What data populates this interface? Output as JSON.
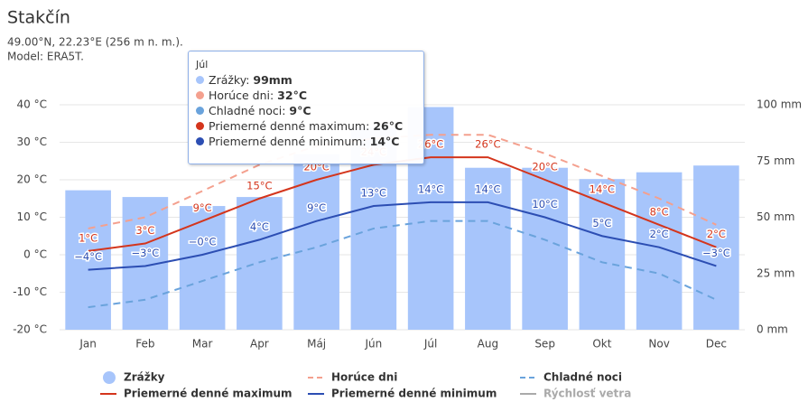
{
  "chart_data": {
    "type": "bar",
    "title": "Stakčín",
    "subtitle": [
      "49.00°N, 22.23°E (256 m n. m.).",
      "Model: ERA5T."
    ],
    "categories": [
      "Jan",
      "Feb",
      "Mar",
      "Apr",
      "Máj",
      "Jún",
      "Júl",
      "Aug",
      "Sep",
      "Okt",
      "Nov",
      "Dec"
    ],
    "ylim": [
      -20,
      40
    ],
    "yticks": [
      {
        "value": -20,
        "label": "-20 °C"
      },
      {
        "value": -10,
        "label": "-10 °C"
      },
      {
        "value": 0,
        "label": "0 °C"
      },
      {
        "value": 10,
        "label": "10 °C"
      },
      {
        "value": 20,
        "label": "20 °C"
      },
      {
        "value": 30,
        "label": "30 °C"
      },
      {
        "value": 40,
        "label": "40 °C"
      }
    ],
    "y2lim": [
      0,
      100
    ],
    "y2ticks": [
      {
        "value": 0,
        "label": "0 mm"
      },
      {
        "value": 25,
        "label": "25 mm"
      },
      {
        "value": 50,
        "label": "50 mm"
      },
      {
        "value": 75,
        "label": "75 mm"
      },
      {
        "value": 100,
        "label": "100 mm"
      }
    ],
    "grid": true,
    "series": [
      {
        "name": "Zrážky",
        "type": "bar",
        "axis": "y2",
        "color": "#a7c5fb",
        "values": [
          62,
          59,
          55,
          59,
          78,
          90,
          99,
          72,
          72,
          67,
          70,
          73
        ]
      },
      {
        "name": "Horúce dni",
        "type": "line",
        "dashed": true,
        "color": "#f4a08e",
        "values": [
          7,
          10,
          17,
          24,
          29,
          31,
          32,
          32,
          27,
          21,
          15,
          8
        ]
      },
      {
        "name": "Chladné noci",
        "type": "line",
        "dashed": true,
        "color": "#6aa3dc",
        "values": [
          -14,
          -12,
          -7,
          -2,
          2,
          7,
          9,
          9,
          4,
          -2,
          -5,
          -12
        ]
      },
      {
        "name": "Priemerné denné maximum",
        "type": "line",
        "color": "#d4351c",
        "values": [
          1,
          3,
          9,
          15,
          20,
          24,
          26,
          26,
          20,
          14,
          8,
          2
        ],
        "value_labels": [
          "1°C",
          "3°C",
          "9°C",
          "15°C",
          "20°C",
          "24°C",
          "26°C",
          "26°C",
          "20°C",
          "14°C",
          "8°C",
          "2°C"
        ]
      },
      {
        "name": "Priemerné denné minimum",
        "type": "line",
        "color": "#2c4eb3",
        "values": [
          -4,
          -3,
          0,
          4,
          9,
          13,
          14,
          14,
          10,
          5,
          2,
          -3
        ],
        "value_labels": [
          "−4°C",
          "−3°C",
          "−0°C",
          "4°C",
          "9°C",
          "13°C",
          "14°C",
          "14°C",
          "10°C",
          "5°C",
          "2°C",
          "−3°C"
        ]
      }
    ],
    "hidden_series": [
      {
        "name": "Rýchlosť vetra",
        "color": "#aaaaaa"
      }
    ],
    "tooltip": {
      "title": "Júl",
      "rows": [
        {
          "label": "Zrážky: ",
          "value": "99mm",
          "color": "#a7c5fb"
        },
        {
          "label": "Horúce dni: ",
          "value": "32°C",
          "color": "#f4a08e"
        },
        {
          "label": "Chladné noci: ",
          "value": "9°C",
          "color": "#6aa3dc"
        },
        {
          "label": "Priemerné denné maximum: ",
          "value": "26°C",
          "color": "#d4351c"
        },
        {
          "label": "Priemerné denné minimum: ",
          "value": "14°C",
          "color": "#2c4eb3"
        }
      ]
    }
  }
}
